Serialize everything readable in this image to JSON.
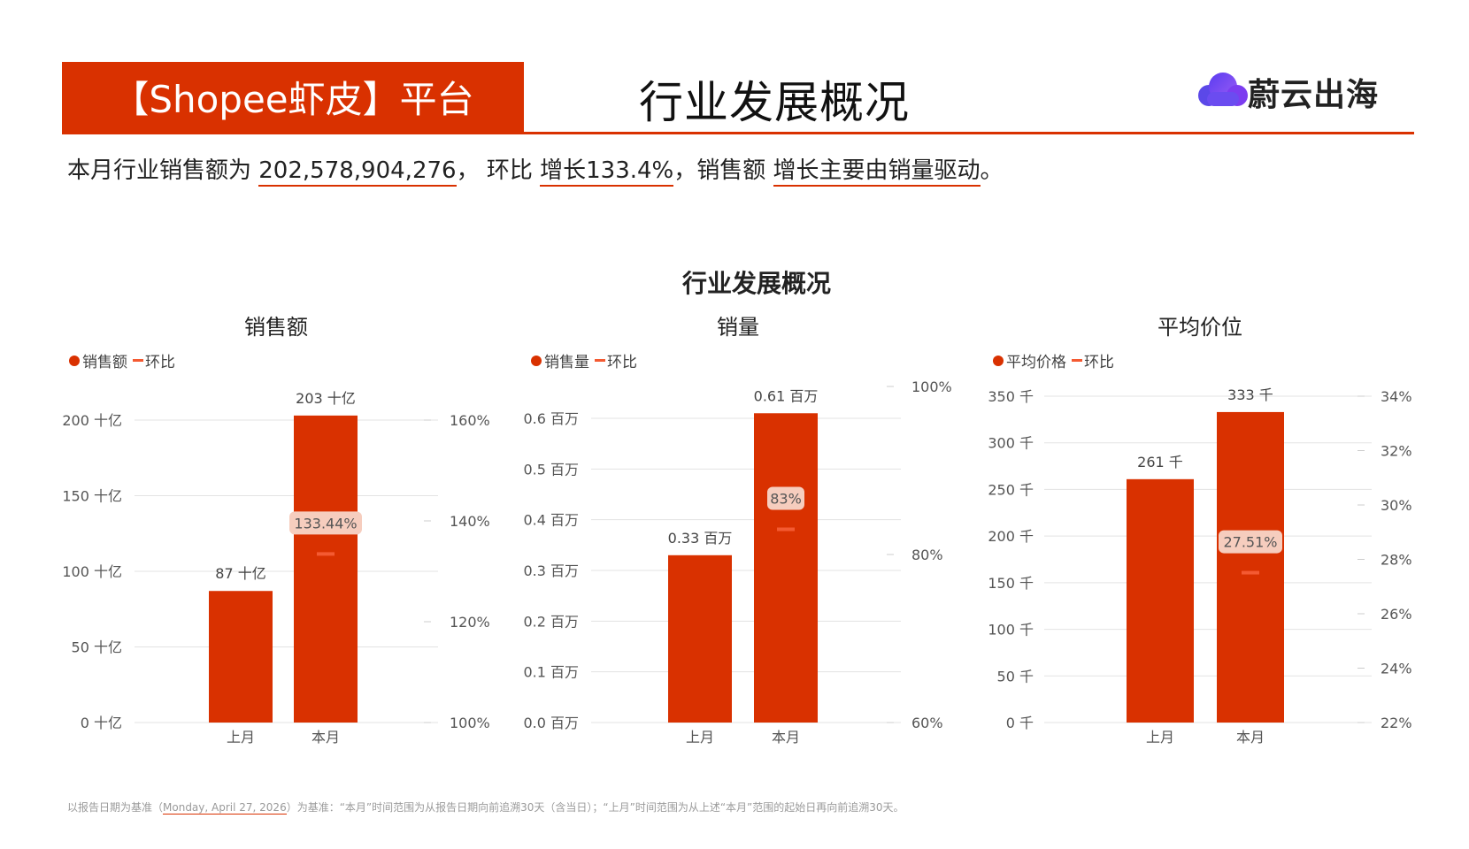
{
  "header": {
    "platform_label": "【Shopee虾皮】平台",
    "page_title": "行业发展概况",
    "logo_text": "蔚云出海"
  },
  "summary": {
    "prefix": "本月行业销售额为 ",
    "sales_value": "202,578,904,276",
    "mid1": "， 环比 ",
    "growth": "增长133.4%",
    "mid2": "，销售额 ",
    "driver": "增长主要由销量驱动",
    "suffix": "。"
  },
  "section_title": "行业发展概况",
  "footnote": {
    "prefix": "以报告日期为基准（",
    "date": "Monday, April 27, 2026",
    "suffix": "）为基准：“本月”时间范围为从报告日期向前追溯30天（含当日）；“上月”时间范围为从上述“本月”范围的起始日再向前追溯30天。"
  },
  "colors": {
    "bar": "#d93100",
    "line": "#f45a32",
    "label_bg": "#f6cdbe",
    "grid": "#e3e3e3"
  },
  "chart_data": [
    {
      "type": "bar",
      "title": "销售额",
      "legend": [
        "销售额",
        "环比"
      ],
      "categories": [
        "上月",
        "本月"
      ],
      "values": [
        87,
        203
      ],
      "value_labels": [
        "87 十亿",
        "203 十亿"
      ],
      "ylim": [
        0,
        200
      ],
      "yticks": [
        0,
        50,
        100,
        150,
        200
      ],
      "ytick_labels": [
        "0 十亿",
        "50 十亿",
        "100 十亿",
        "150 十亿",
        "200 十亿"
      ],
      "y2lim": [
        100,
        160
      ],
      "y2ticks": [
        100,
        120,
        140,
        160
      ],
      "y2tick_labels": [
        "100%",
        "120%",
        "140%",
        "160%"
      ],
      "mom": {
        "category": "本月",
        "value": 133.44,
        "label": "133.44%"
      }
    },
    {
      "type": "bar",
      "title": "销量",
      "legend": [
        "销售量",
        "环比"
      ],
      "categories": [
        "上月",
        "本月"
      ],
      "values": [
        0.33,
        0.61
      ],
      "value_labels": [
        "0.33 百万",
        "0.61 百万"
      ],
      "ylim": [
        0,
        0.6
      ],
      "yticks": [
        0,
        0.1,
        0.2,
        0.3,
        0.4,
        0.5,
        0.6
      ],
      "ytick_labels": [
        "0.0 百万",
        "0.1 百万",
        "0.2 百万",
        "0.3 百万",
        "0.4 百万",
        "0.5 百万",
        "0.6 百万"
      ],
      "y2lim": [
        60,
        100
      ],
      "y2ticks": [
        60,
        80,
        100
      ],
      "y2tick_labels": [
        "60%",
        "80%",
        "100%"
      ],
      "mom": {
        "category": "本月",
        "value": 83,
        "label": "83%"
      }
    },
    {
      "type": "bar",
      "title": "平均价位",
      "legend": [
        "平均价格",
        "环比"
      ],
      "categories": [
        "上月",
        "本月"
      ],
      "values": [
        261,
        333
      ],
      "value_labels": [
        "261 千",
        "333 千"
      ],
      "ylim": [
        0,
        350
      ],
      "yticks": [
        0,
        50,
        100,
        150,
        200,
        250,
        300,
        350
      ],
      "ytick_labels": [
        "0 千",
        "50 千",
        "100 千",
        "150 千",
        "200 千",
        "250 千",
        "300 千",
        "350 千"
      ],
      "y2lim": [
        22,
        34
      ],
      "y2ticks": [
        22,
        24,
        26,
        28,
        30,
        32,
        34
      ],
      "y2tick_labels": [
        "22%",
        "24%",
        "26%",
        "28%",
        "30%",
        "32%",
        "34%"
      ],
      "mom": {
        "category": "本月",
        "value": 27.51,
        "label": "27.51%"
      }
    }
  ]
}
